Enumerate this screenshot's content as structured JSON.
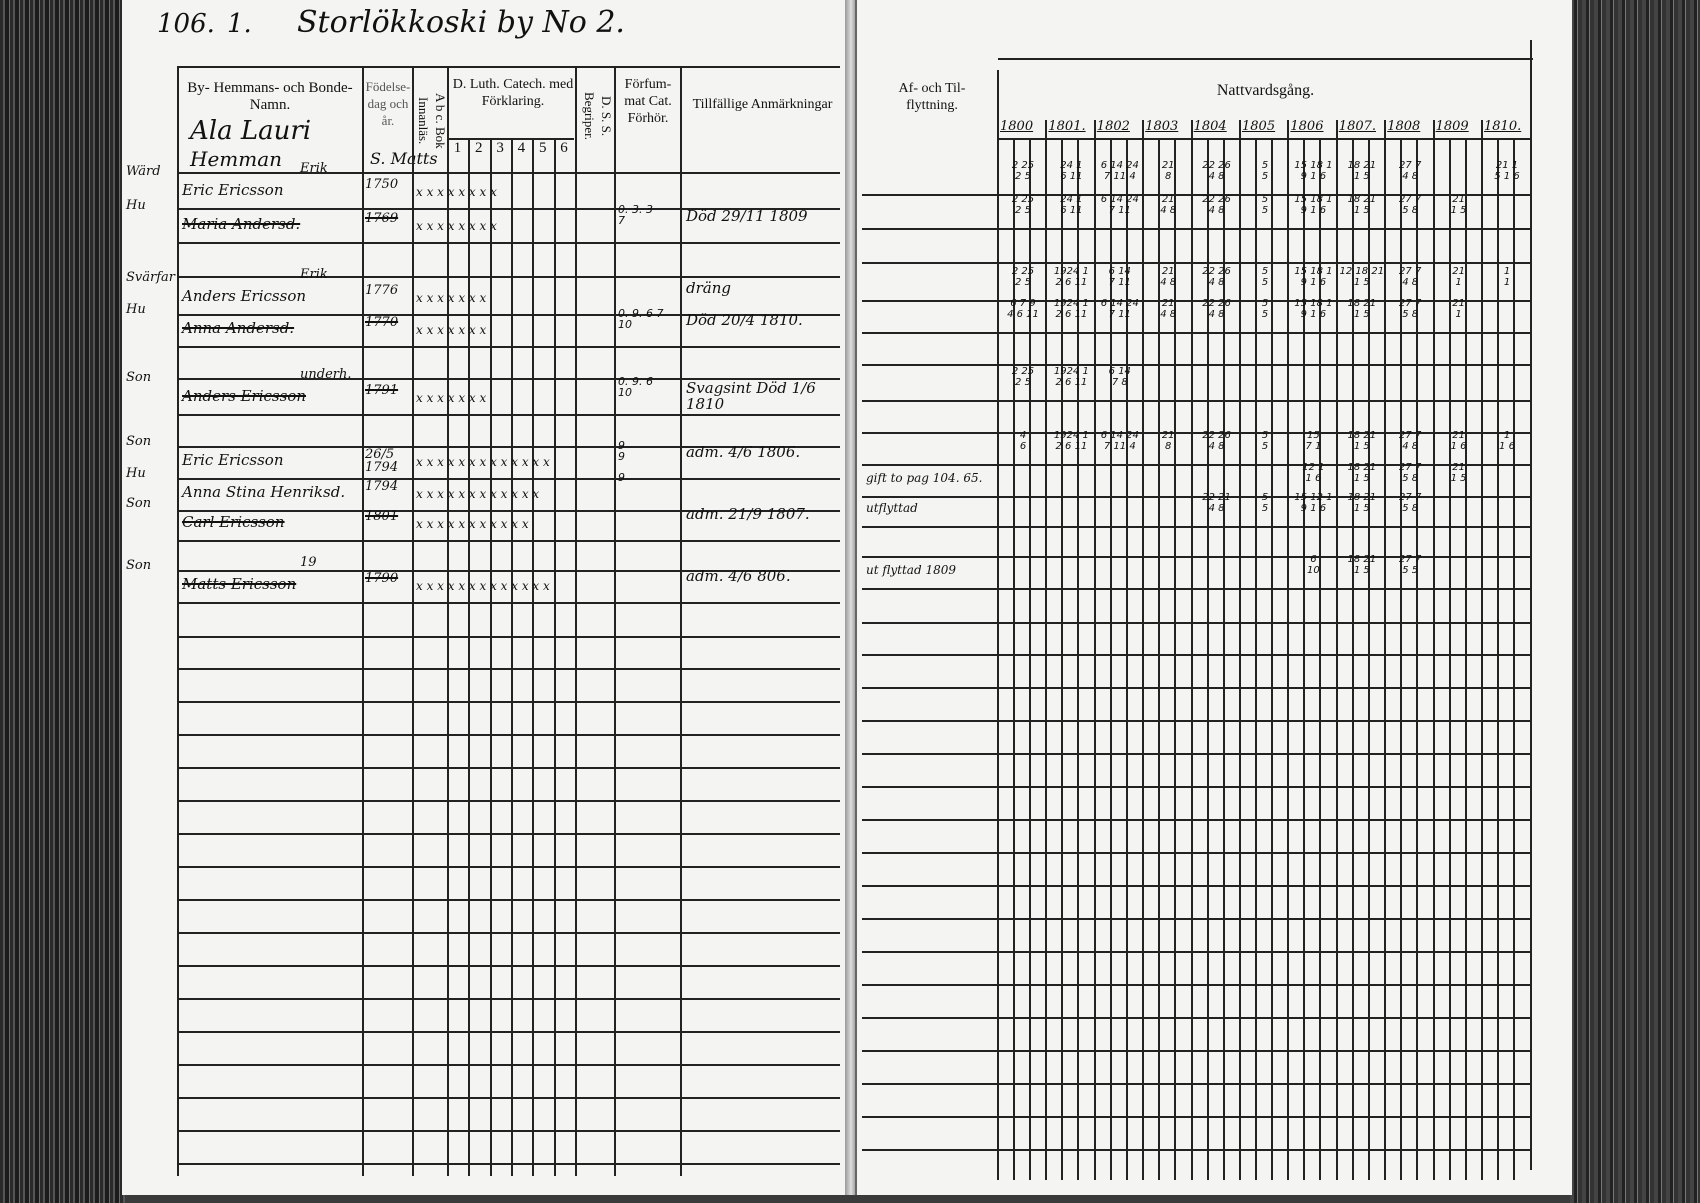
{
  "header": {
    "page_number": "106.",
    "entry_number": "1.",
    "village": "Storlökkoski by No 2."
  },
  "farm": {
    "name": "Ala Lauri",
    "type": "Hemman",
    "note": "S. Matts"
  },
  "left_columns": {
    "name": "By- Hemmans- och Bonde- Namn.",
    "birth": "Födelse-dag och år.",
    "abc": "A b c. Bok Innanläs.",
    "catechism": "D. Luth. Catech. med Förklaring.",
    "catechism_parts": [
      "1",
      "2",
      "3",
      "4",
      "5",
      "6"
    ],
    "dss": "D. S. S. Begriper.",
    "exam": "Förfum-mat Cat. Förhör.",
    "remarks": "Tillfällige Anmärkningar"
  },
  "right_columns": {
    "moves": "Af- och Til- flyttning.",
    "communion": "Nattvardsgång.",
    "years": [
      "1800",
      "1801.",
      "1802",
      "1803",
      "1804",
      "1805",
      "1806",
      "1807.",
      "1808",
      "1809",
      "1810."
    ]
  },
  "entries": [
    {
      "row": 0,
      "role": "Wärd",
      "above": "Erik",
      "name": "Eric Ericsson",
      "birth": "1750",
      "marks": "x  x x  x  x  x  x  x",
      "exam": "",
      "remark": "",
      "move": "",
      "struck": false,
      "communion": [
        "2 25\n2 5",
        "24 1\n6 11",
        "6 14 24\n7 11 4",
        "21\n8",
        "22 26\n4 8",
        "5\n5",
        "15 18 1\n9 1 6",
        "18 21\n1 5",
        "27 7\n4 8",
        "",
        "21 1\n5 1 6"
      ]
    },
    {
      "row": 1,
      "role": "Hu",
      "above": "",
      "name": "Maria Andersd.",
      "birth": "1769",
      "marks": "x x  x  x  x  x  x  x",
      "exam": "0. 3. 3\n7",
      "remark": "Död 29/11 1809",
      "move": "",
      "struck": true,
      "communion": [
        "2 25\n2 5",
        "24 1\n6 11",
        "6 14 24\n7 11",
        "21\n4 8",
        "22 26\n4 8",
        "5\n5",
        "15 18 1\n9 1 6",
        "18 21\n1 5",
        "27 7\n5 8",
        "21\n1 5",
        ""
      ]
    },
    {
      "row": 3,
      "role": "Svärfar",
      "above": "Erik",
      "name": "Anders Ericsson",
      "birth": "1776",
      "marks": "x x  x  x  x  x  x",
      "exam": "",
      "remark": "dräng",
      "move": "",
      "struck": false,
      "communion": [
        "2 25\n2 5",
        "1924 1\n2 6 11",
        "6 14\n7 11",
        "21\n4 8",
        "22 26\n4 8",
        "5\n5",
        "15 18 1\n9 1 6",
        "12 18 21\n1 5",
        "27 7\n4 8",
        "21\n1",
        "1\n1"
      ]
    },
    {
      "row": 4,
      "role": "Hu",
      "above": "",
      "name": "Anna Andersd.",
      "birth": "1770",
      "marks": "x x  x  x  x  x  x",
      "exam": "0. 9. 6 7\n10",
      "remark": "Död 20/4 1810.",
      "move": "",
      "struck": true,
      "communion": [
        "6 7 9\n4 6 11",
        "1924 1\n2 6 11",
        "6 14 24\n7 11",
        "21\n4 8",
        "22 26\n4 8",
        "5\n5",
        "15 18 1\n9 1 6",
        "18 21\n1 5",
        "27 7\n5 8",
        "21\n1",
        ""
      ]
    },
    {
      "row": 6,
      "role": "Son",
      "above": "underh.",
      "name": "Anders Ericsson",
      "birth": "1791",
      "marks": "x x  x  x  x  x  x",
      "exam": "0. 9. 6\n10",
      "remark": "Svagsint Död 1/6 1810",
      "move": "",
      "struck": true,
      "communion": [
        "2 25\n2 5",
        "1924 1\n2 6 11",
        "6 14\n7 8",
        "",
        "",
        "",
        "",
        "",
        "",
        "",
        ""
      ]
    },
    {
      "row": 8,
      "role": "Son",
      "above": "",
      "name": "Eric Ericsson",
      "birth": "26/5 1794",
      "marks": "x x x x x x x x x x x x x",
      "exam": "9\n9",
      "remark": "adm. 4/6 1806.",
      "move": "",
      "struck": false,
      "communion": [
        "4\n6",
        "1924 1\n2 6 11",
        "6 14 24\n7 11 4",
        "21\n8",
        "22 26\n4 8",
        "5\n5",
        "15\n7 1",
        "18 21\n1 5",
        "27 7\n4 8",
        "21\n1 6",
        "1\n1 6"
      ]
    },
    {
      "row": 9,
      "role": "Hu",
      "above": "",
      "name": "Anna Stina Henriksd.",
      "birth": "1794",
      "marks": "x x x x x x x x x x x x",
      "exam": "9",
      "remark": "",
      "move": "gift to pag 104. 65.",
      "struck": false,
      "communion": [
        "",
        "",
        "",
        "",
        "",
        "",
        "12 1\n1 6",
        "18 21\n1 5",
        "27 7\n5 8",
        "21\n1 5",
        ""
      ]
    },
    {
      "row": 10,
      "role": "Son",
      "above": "",
      "name": "Carl Ericsson",
      "birth": "1801",
      "marks": "x x x x x x x x x x x",
      "exam": "",
      "remark": "adm. 21/9 1807.",
      "move": "utflyttad",
      "struck": true,
      "communion": [
        "",
        "",
        "",
        "",
        "22 21\n4 8",
        "5\n5",
        "15 12 1\n9 1 6",
        "18 21\n1 5",
        "27 7\n5 8",
        "",
        ""
      ]
    },
    {
      "row": 12,
      "role": "Son",
      "above": "19",
      "name": "Matts Ericsson",
      "birth": "1790",
      "marks": "x x x x x x x x x x x x x",
      "exam": "",
      "remark": "adm. 4/6 806.",
      "move": "ut flyttad 1809",
      "struck": true,
      "communion": [
        "",
        "",
        "",
        "",
        "",
        "",
        "6\n10",
        "18 21\n1 5",
        "27 7\n5 5",
        "",
        ""
      ]
    }
  ]
}
